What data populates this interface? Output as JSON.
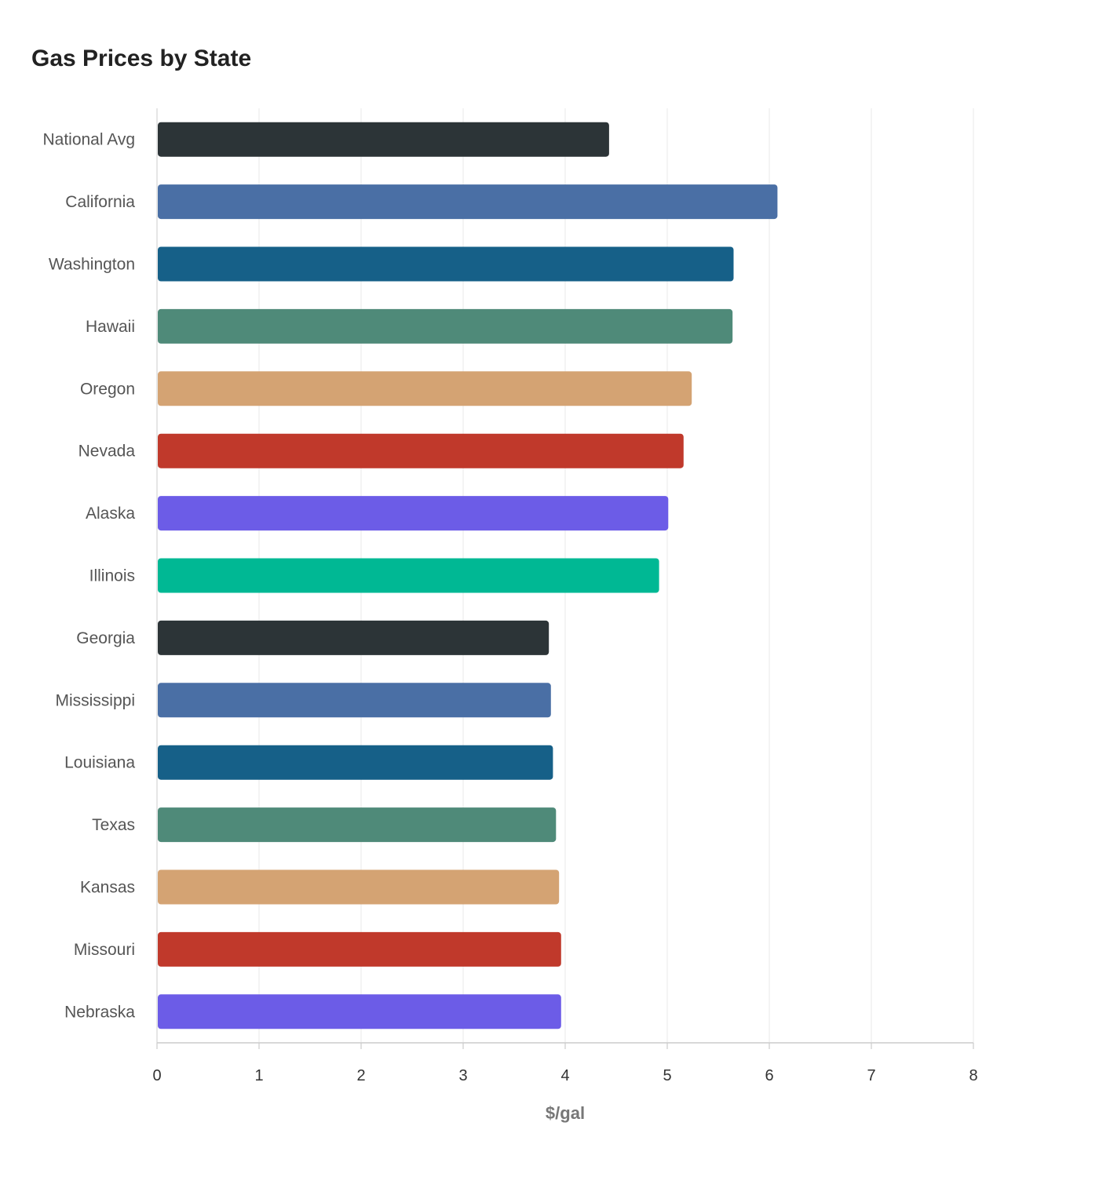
{
  "chart_data": {
    "type": "bar",
    "orientation": "horizontal",
    "title": "Gas Prices by State",
    "xlabel": "$/gal",
    "ylabel": "",
    "xlim": [
      0,
      8
    ],
    "xticks": [
      "0",
      "1",
      "2",
      "3",
      "4",
      "5",
      "6",
      "7",
      "8"
    ],
    "grid": true,
    "categories": [
      "National Avg",
      "California",
      "Washington",
      "Hawaii",
      "Oregon",
      "Nevada",
      "Alaska",
      "Illinois",
      "Georgia",
      "Mississippi",
      "Louisiana",
      "Texas",
      "Kansas",
      "Missouri",
      "Nebraska"
    ],
    "values": [
      4.43,
      6.08,
      5.65,
      5.64,
      5.24,
      5.16,
      5.01,
      4.92,
      3.84,
      3.86,
      3.88,
      3.91,
      3.94,
      3.96,
      3.96
    ],
    "colors": [
      "#2c3437",
      "#4a6fa5",
      "#166088",
      "#4f8a79",
      "#d4a373",
      "#c0392b",
      "#6c5ce7",
      "#00b894",
      "#2c3437",
      "#4a6fa5",
      "#166088",
      "#4f8a79",
      "#d4a373",
      "#c0392b",
      "#6c5ce7"
    ]
  }
}
